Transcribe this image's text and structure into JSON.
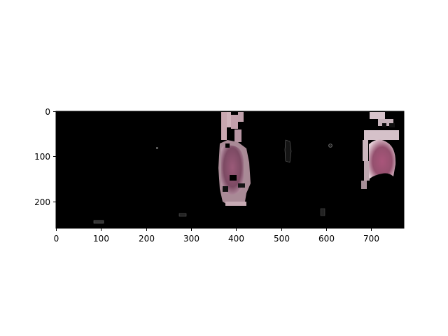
{
  "image_panel": {
    "x_range": [
      0,
      774
    ],
    "y_range": [
      0,
      258
    ],
    "x_ticks": [
      0,
      100,
      200,
      300,
      400,
      500,
      600,
      700
    ],
    "y_ticks": [
      0,
      100,
      200
    ],
    "background_color": "#000000",
    "region_color": "#c9a8b4",
    "inner_color": "#8a4f6a",
    "axis_color": "#000000"
  }
}
